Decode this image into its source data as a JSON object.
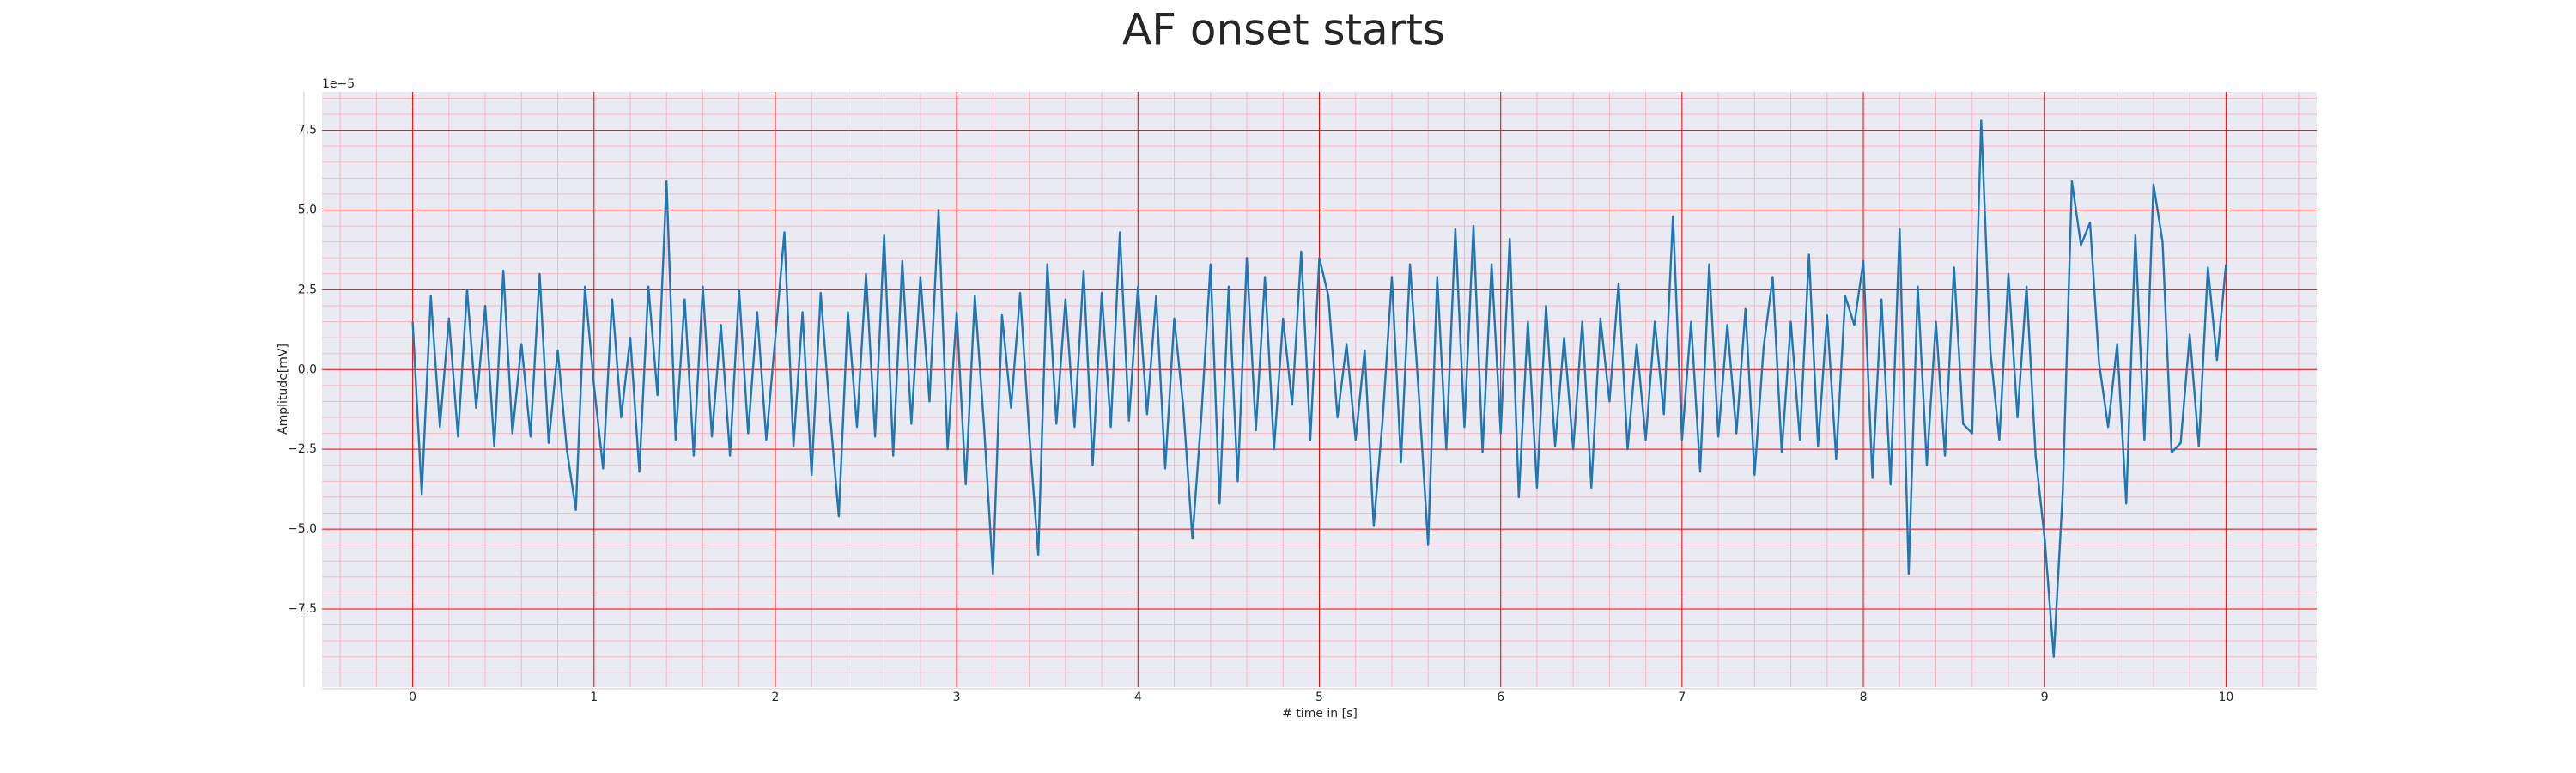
{
  "chart_data": {
    "type": "line",
    "title": "AF onset starts",
    "xlabel": "# time in [s]",
    "ylabel": "Amplitude[mV]",
    "y_offset_label": "1e−5",
    "x": [
      0,
      0.05,
      0.1,
      0.15,
      0.2,
      0.25,
      0.3,
      0.35,
      0.4,
      0.45,
      0.5,
      0.55,
      0.6,
      0.65,
      0.7,
      0.75,
      0.8,
      0.85,
      0.9,
      0.95,
      1,
      1.05,
      1.1,
      1.15,
      1.2,
      1.25,
      1.3,
      1.35,
      1.4,
      1.45,
      1.5,
      1.55,
      1.6,
      1.65,
      1.7,
      1.75,
      1.8,
      1.85,
      1.9,
      1.95,
      2,
      2.05,
      2.1,
      2.15,
      2.2,
      2.25,
      2.3,
      2.35,
      2.4,
      2.45,
      2.5,
      2.55,
      2.6,
      2.65,
      2.7,
      2.75,
      2.8,
      2.85,
      2.9,
      2.95,
      3,
      3.05,
      3.1,
      3.15,
      3.2,
      3.25,
      3.3,
      3.35,
      3.4,
      3.45,
      3.5,
      3.55,
      3.6,
      3.65,
      3.7,
      3.75,
      3.8,
      3.85,
      3.9,
      3.95,
      4,
      4.05,
      4.1,
      4.15,
      4.2,
      4.25,
      4.3,
      4.35,
      4.4,
      4.45,
      4.5,
      4.55,
      4.6,
      4.65,
      4.7,
      4.75,
      4.8,
      4.85,
      4.9,
      4.95,
      5,
      5.05,
      5.1,
      5.15,
      5.2,
      5.25,
      5.3,
      5.35,
      5.4,
      5.45,
      5.5,
      5.55,
      5.6,
      5.65,
      5.7,
      5.75,
      5.8,
      5.85,
      5.9,
      5.95,
      6,
      6.05,
      6.1,
      6.15,
      6.2,
      6.25,
      6.3,
      6.35,
      6.4,
      6.45,
      6.5,
      6.55,
      6.6,
      6.65,
      6.7,
      6.75,
      6.8,
      6.85,
      6.9,
      6.95,
      7,
      7.05,
      7.1,
      7.15,
      7.2,
      7.25,
      7.3,
      7.35,
      7.4,
      7.45,
      7.5,
      7.55,
      7.6,
      7.65,
      7.7,
      7.75,
      7.8,
      7.85,
      7.9,
      7.95,
      8,
      8.05,
      8.1,
      8.15,
      8.2,
      8.25,
      8.3,
      8.35,
      8.4,
      8.45,
      8.5,
      8.55,
      8.6,
      8.65,
      8.7,
      8.75,
      8.8,
      8.85,
      8.9,
      8.95,
      9,
      9.05,
      9.1,
      9.15,
      9.2,
      9.25,
      9.3,
      9.35,
      9.4,
      9.45,
      9.5,
      9.55,
      9.6,
      9.65,
      9.7,
      9.75,
      9.8,
      9.85,
      9.9,
      9.95,
      10
    ],
    "series": [
      {
        "color": "#1f77b4",
        "values": [
          1.5,
          -3.9,
          2.3,
          -1.8,
          1.6,
          -2.1,
          2.5,
          -1.2,
          2.0,
          -2.4,
          3.1,
          -2.0,
          0.8,
          -2.1,
          3.0,
          -2.3,
          0.6,
          -2.5,
          -4.4,
          2.6,
          -0.5,
          -3.1,
          2.2,
          -1.5,
          1.0,
          -3.2,
          2.6,
          -0.8,
          5.9,
          -2.2,
          2.2,
          -2.7,
          2.6,
          -2.1,
          1.4,
          -2.7,
          2.5,
          -2.0,
          1.8,
          -2.2,
          1.0,
          4.3,
          -2.4,
          1.8,
          -3.3,
          2.4,
          -1.3,
          -4.6,
          1.8,
          -1.8,
          3.0,
          -2.1,
          4.2,
          -2.7,
          3.4,
          -1.7,
          2.9,
          -1.0,
          5.0,
          -2.5,
          1.8,
          -3.6,
          2.3,
          -1.7,
          -6.4,
          1.7,
          -1.2,
          2.4,
          -2.0,
          -5.8,
          3.3,
          -1.7,
          2.2,
          -1.8,
          3.1,
          -3.0,
          2.4,
          -1.8,
          4.3,
          -1.6,
          2.6,
          -1.4,
          2.3,
          -3.1,
          1.6,
          -1.2,
          -5.3,
          -1.4,
          3.3,
          -4.2,
          2.6,
          -3.5,
          3.5,
          -1.9,
          2.9,
          -2.5,
          1.6,
          -1.1,
          3.7,
          -2.2,
          3.5,
          2.3,
          -1.5,
          0.8,
          -2.2,
          0.6,
          -4.9,
          -1.5,
          2.9,
          -2.9,
          3.3,
          -0.9,
          -5.5,
          2.9,
          -2.5,
          4.4,
          -1.8,
          4.5,
          -2.6,
          3.3,
          -2.0,
          4.1,
          -4.0,
          1.5,
          -3.7,
          2.0,
          -2.4,
          1.0,
          -2.5,
          1.5,
          -3.7,
          1.6,
          -1.0,
          2.7,
          -2.5,
          0.8,
          -2.2,
          1.5,
          -1.4,
          4.8,
          -2.2,
          1.5,
          -3.2,
          3.3,
          -2.1,
          1.4,
          -2.0,
          1.9,
          -3.3,
          0.7,
          2.9,
          -2.6,
          1.5,
          -2.2,
          3.6,
          -2.4,
          1.7,
          -2.8,
          2.3,
          1.4,
          3.4,
          -3.4,
          2.2,
          -3.6,
          4.4,
          -6.4,
          2.6,
          -3.0,
          1.5,
          -2.7,
          3.2,
          -1.7,
          -2.0,
          7.8,
          0.6,
          -2.2,
          3.0,
          -1.5,
          2.6,
          -2.7,
          -5.3,
          -9.0,
          -3.8,
          5.9,
          3.9,
          4.6,
          0.2,
          -1.8,
          0.8,
          -4.2,
          4.2,
          -2.2,
          5.8,
          4.0,
          -2.6,
          -2.3,
          1.1,
          -2.4,
          3.2,
          0.3,
          3.3
        ]
      }
    ],
    "xlim": [
      -0.5,
      10.5
    ],
    "ylim": [
      -9.95,
      8.7
    ],
    "xticks": [
      0,
      1,
      2,
      3,
      4,
      5,
      6,
      7,
      8,
      9,
      10
    ],
    "yticks": [
      {
        "value": -7.5,
        "label": "−7.5"
      },
      {
        "value": -5,
        "label": "−5.0"
      },
      {
        "value": -2.5,
        "label": "−2.5"
      },
      {
        "value": 0,
        "label": "0.0"
      },
      {
        "value": 2.5,
        "label": "2.5"
      },
      {
        "value": 5,
        "label": "5.0"
      },
      {
        "value": 7.5,
        "label": "7.5"
      }
    ],
    "grid": true,
    "grid_color": "#ff0000",
    "minor_grid": true,
    "minor_grid_color": "#f7b7c4",
    "background": "#eaeaf2"
  }
}
